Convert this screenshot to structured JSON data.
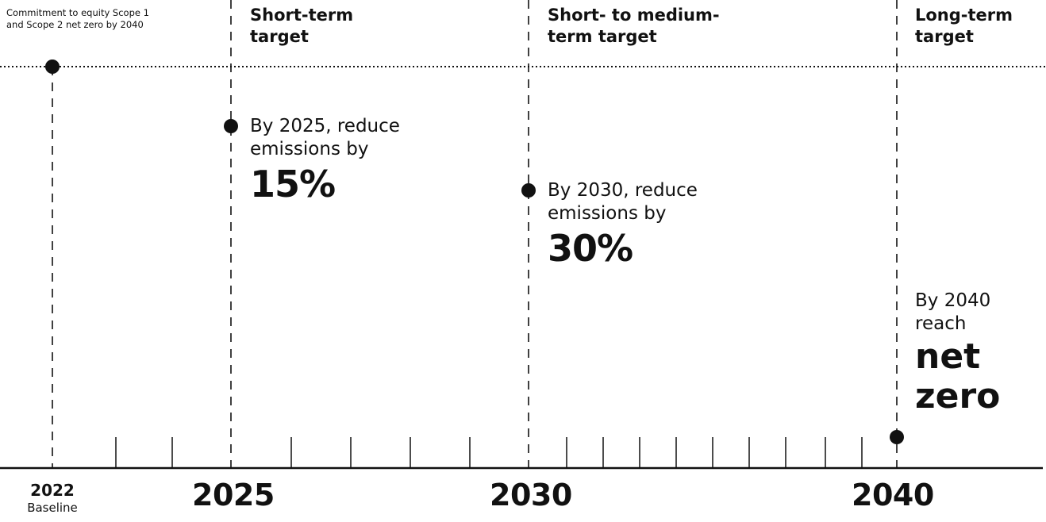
{
  "baseline_note": "Commitment to equity Scope 1 and Scope 2 net zero by 2040",
  "phases": [
    {
      "label_line1": "Short-term",
      "label_line2": "target"
    },
    {
      "label_line1": "Short- to medium-",
      "label_line2": "term target"
    },
    {
      "label_line1": "Long-term",
      "label_line2": "target"
    }
  ],
  "targets": [
    {
      "line1": "By 2025, reduce",
      "line2": "emissions by",
      "value": "15%",
      "reduction_percent": 15,
      "year": 2025
    },
    {
      "line1": "By 2030, reduce",
      "line2": "emissions by",
      "value": "30%",
      "reduction_percent": 30,
      "year": 2030
    },
    {
      "line1": "By 2040",
      "line2": "reach",
      "value_line1": "net",
      "value_line2": "zero",
      "year": 2040
    }
  ],
  "axis": {
    "years": [
      {
        "label": "2022",
        "sublabel": "Baseline"
      },
      {
        "label": "2025"
      },
      {
        "label": "2030"
      },
      {
        "label": "2040"
      }
    ]
  },
  "colors": {
    "ink": "#111111",
    "background": "#ffffff"
  }
}
